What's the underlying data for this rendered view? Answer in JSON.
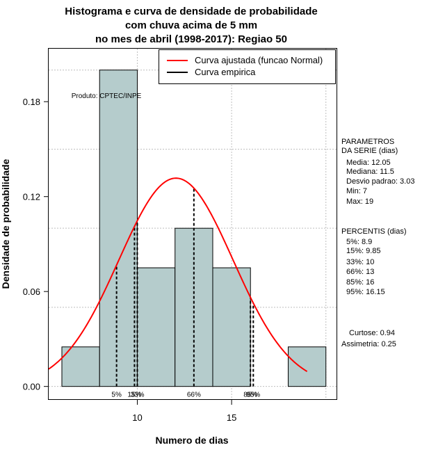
{
  "chart_data": {
    "type": "histogram",
    "title_lines": [
      "Histograma e curva de densidade de probabilidade",
      "com chuva acima de 5 mm",
      "no mes de abril (1998-2017): Regiao 50"
    ],
    "xlabel": "Numero de dias",
    "ylabel": "Densidade de probabilidade",
    "xlim": [
      5.3,
      20.6
    ],
    "ylim": [
      -0.0085,
      0.2135
    ],
    "x_ticks": [
      10,
      15
    ],
    "y_ticks": [
      0.0,
      0.06,
      0.12,
      0.18
    ],
    "y_tick_labels": [
      "0.00",
      "0.06",
      "0.12",
      "0.18"
    ],
    "x_grid": [
      10,
      15,
      20
    ],
    "y_grid": [
      0.0,
      0.05,
      0.1,
      0.15,
      0.2
    ],
    "bins": [
      {
        "from": 6,
        "to": 8,
        "density": 0.025
      },
      {
        "from": 8,
        "to": 10,
        "density": 0.2
      },
      {
        "from": 10,
        "to": 12,
        "density": 0.075
      },
      {
        "from": 12,
        "to": 14,
        "density": 0.1
      },
      {
        "from": 14,
        "to": 16,
        "density": 0.075
      },
      {
        "from": 16,
        "to": 18,
        "density": 0
      },
      {
        "from": 18,
        "to": 20,
        "density": 0.025
      }
    ],
    "normal_curve": {
      "mean": 12.05,
      "sd": 3.03,
      "from": 5.3,
      "to": 19.0
    },
    "percentiles": [
      {
        "label": "5%",
        "value": 8.9
      },
      {
        "label": "15%",
        "value": 9.85
      },
      {
        "label": "33%",
        "value": 10
      },
      {
        "label": "66%",
        "value": 13
      },
      {
        "label": "85%",
        "value": 16
      },
      {
        "label": "95%",
        "value": 16.15
      }
    ],
    "credit": "Produto: CPTEC/INPE",
    "legend": [
      {
        "label": "Curva ajustada (funcao Normal)",
        "color": "#ff0000"
      },
      {
        "label": "Curva empirica",
        "color": "#000000"
      }
    ],
    "legend_position": "top-right",
    "colors": {
      "bar_fill": "#b5cccc",
      "curve": "#ff0000",
      "grid": "#bebebe"
    }
  },
  "side_panel": {
    "params_title": [
      "PARAMETROS",
      "DA SERIE (dias)"
    ],
    "params": [
      "Media: 12.05",
      "Mediana: 11.5",
      "Desvio padrao: 3.03",
      "Min: 7",
      "Max: 19"
    ],
    "percentis_title": "PERCENTIS (dias)",
    "percentis": [
      "5%: 8.9",
      "15%: 9.85",
      "33%: 10",
      "66%: 13",
      "85%: 16",
      "95%: 16.15"
    ],
    "curtose": "Curtose: 0.94",
    "assimetria": "Assimetria: 0.25"
  }
}
